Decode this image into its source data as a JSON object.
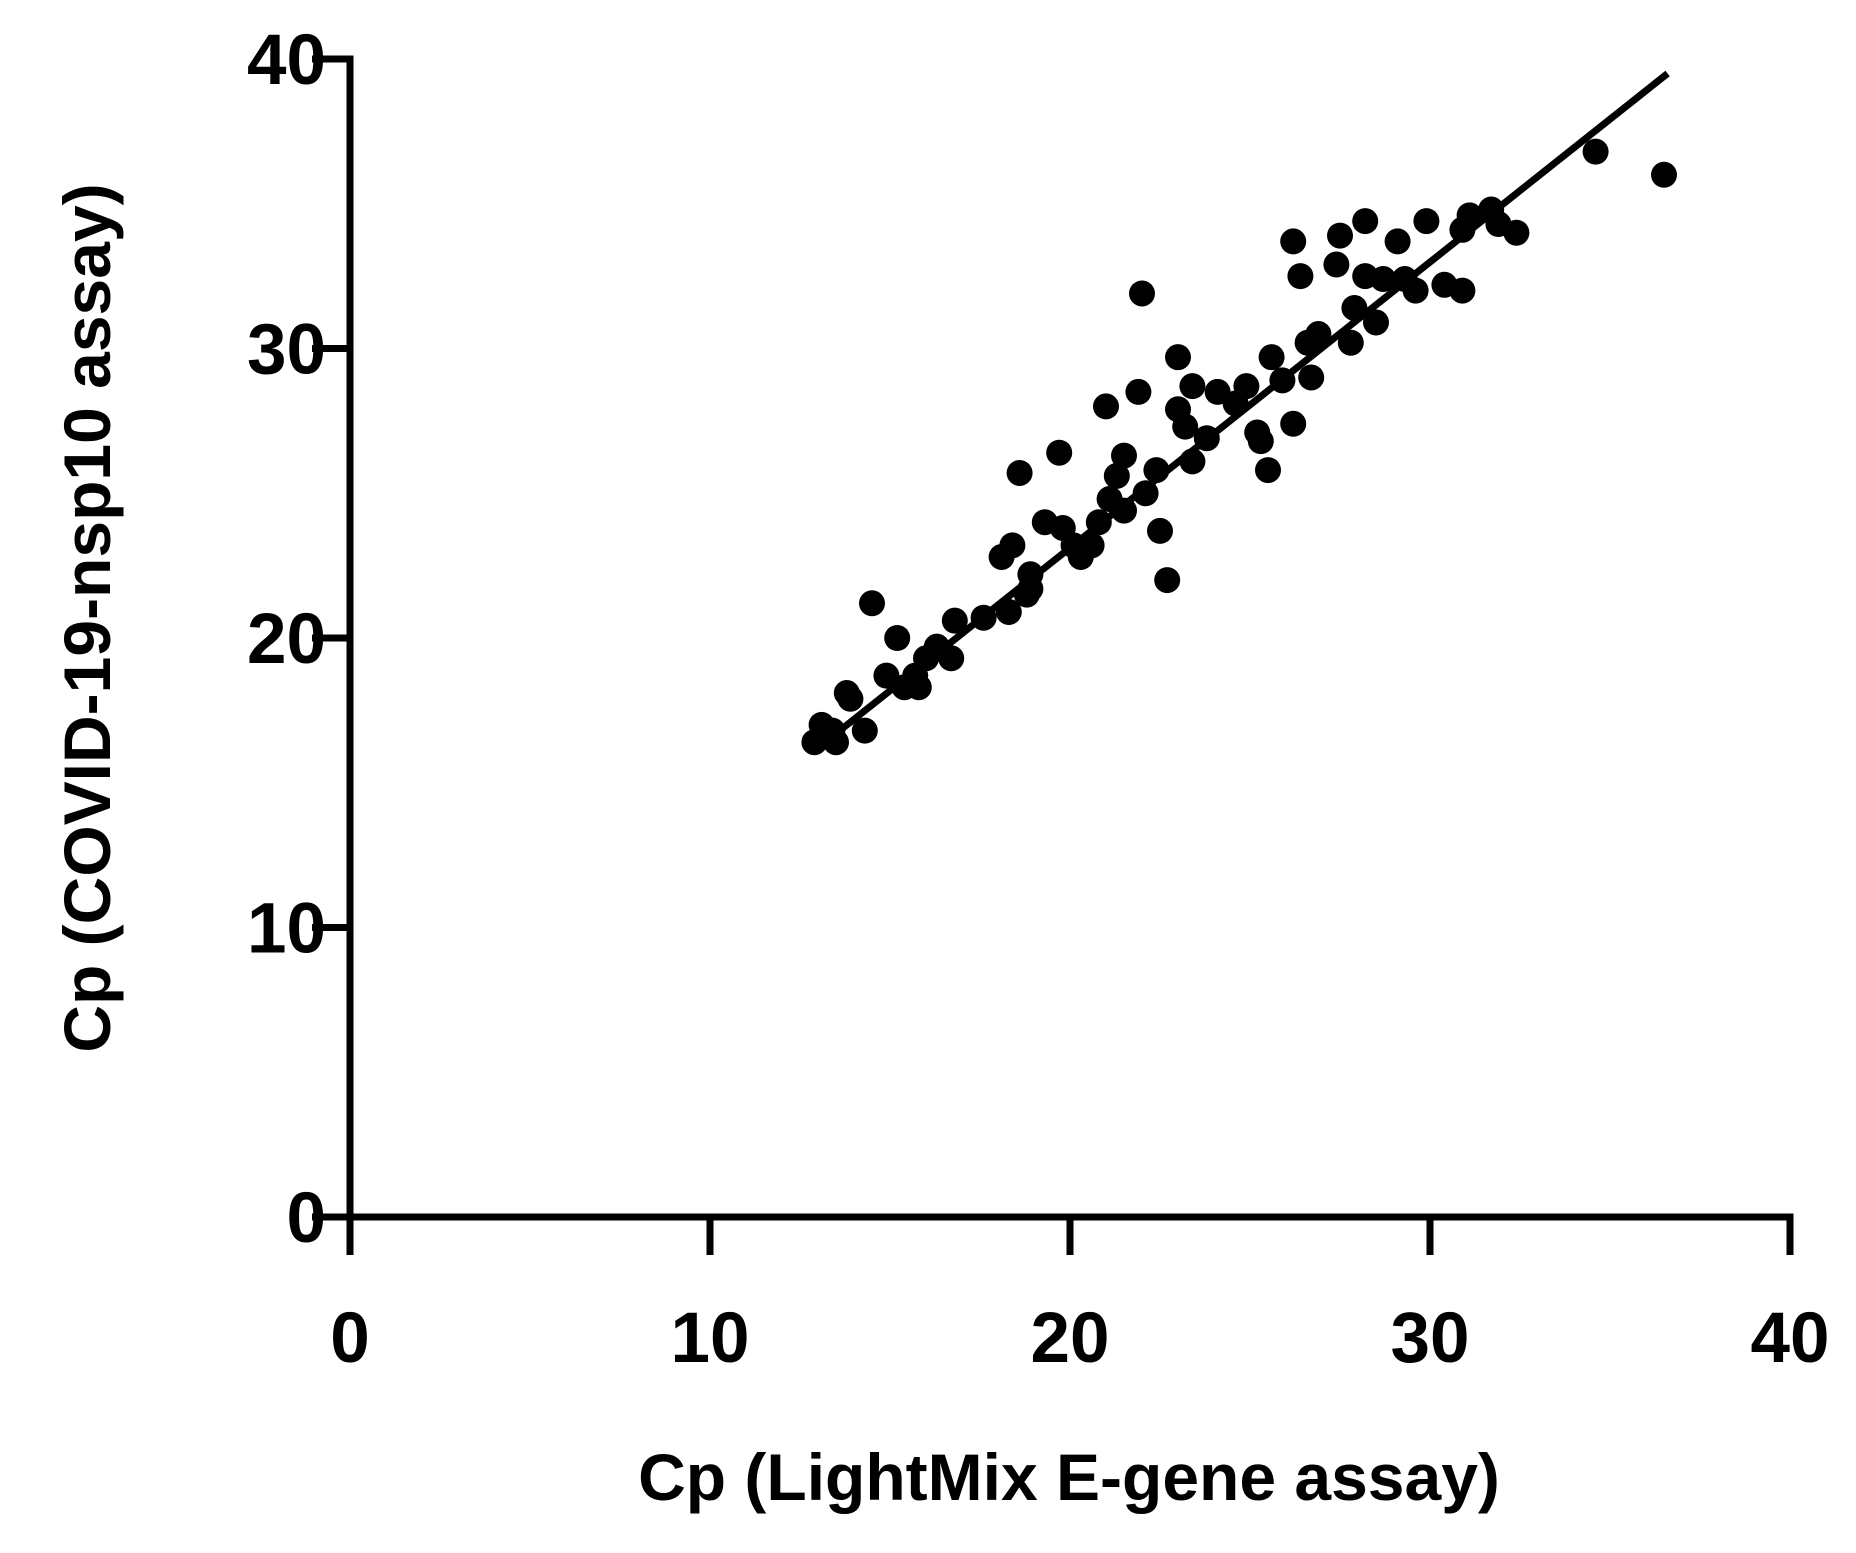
{
  "chart_data": {
    "type": "scatter",
    "xlabel": "Cp (LightMix E-gene assay)",
    "ylabel": "Cp (COVID-19-nsp10 assay)",
    "color": "#000000",
    "x": [
      12.9,
      13.1,
      13.5,
      13.8,
      14.3,
      14.5,
      15.2,
      14.9,
      15.4,
      15.8,
      16.0,
      16.3,
      16.7,
      16.8,
      17.6,
      18.1,
      18.4,
      18.6,
      18.3,
      18.8,
      18.9,
      19.3,
      19.7,
      19.8,
      20.1,
      20.3,
      20.6,
      20.8,
      21.1,
      21.0,
      21.3,
      21.5,
      21.9,
      22.0,
      22.1,
      22.4,
      22.5,
      22.7,
      23.0,
      23.0,
      23.2,
      23.4,
      23.4,
      23.8,
      24.1,
      24.6,
      24.9,
      25.2,
      25.3,
      25.5,
      25.6,
      25.9,
      26.2,
      26.2,
      26.4,
      26.6,
      26.7,
      26.9,
      27.4,
      27.5,
      27.8,
      27.9,
      28.2,
      28.2,
      28.5,
      28.7,
      29.1,
      29.3,
      29.6,
      29.9,
      30.4,
      30.9,
      30.9,
      31.1,
      31.7,
      31.9,
      32.4,
      34.6,
      36.5,
      18.9,
      13.4,
      13.9,
      15.7,
      21.5
    ],
    "y": [
      16.4,
      17.0,
      16.4,
      18.1,
      16.8,
      21.2,
      20.0,
      18.7,
      18.3,
      18.3,
      19.3,
      19.7,
      19.3,
      20.6,
      20.7,
      22.8,
      23.2,
      25.7,
      20.9,
      21.5,
      22.2,
      24.0,
      26.4,
      23.8,
      23.2,
      22.8,
      23.2,
      24.0,
      24.8,
      28.0,
      25.6,
      26.3,
      28.5,
      31.9,
      25.0,
      25.8,
      23.7,
      22.0,
      29.7,
      27.9,
      27.3,
      28.7,
      26.1,
      26.9,
      28.5,
      28.1,
      28.7,
      27.1,
      26.8,
      25.8,
      29.7,
      28.9,
      27.4,
      33.7,
      32.5,
      30.2,
      29.0,
      30.5,
      32.9,
      33.9,
      30.2,
      31.4,
      34.4,
      32.5,
      30.9,
      32.4,
      33.7,
      32.4,
      32.0,
      34.4,
      32.2,
      32.0,
      34.1,
      34.6,
      34.8,
      34.3,
      34.0,
      36.8,
      36.0,
      21.7,
      16.8,
      17.9,
      18.7,
      24.4
    ],
    "fit": {
      "x": [
        13.4,
        36.6
      ],
      "y": [
        16.6,
        39.5
      ]
    },
    "xlim": [
      0,
      40
    ],
    "xticks": [
      0,
      10,
      20,
      30,
      40
    ],
    "ylim": [
      0,
      40
    ],
    "yticks": [
      0,
      10,
      20,
      30,
      40
    ]
  }
}
